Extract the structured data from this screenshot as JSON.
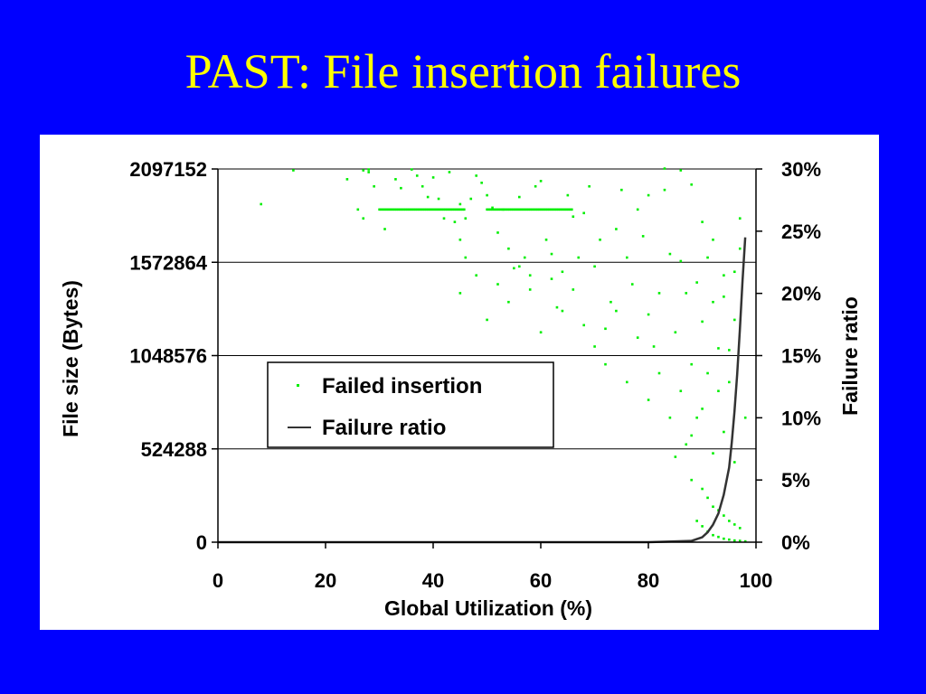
{
  "slide": {
    "title": "PAST: File insertion failures"
  },
  "colors": {
    "background": "#0000ff",
    "title": "#ffff00",
    "panel": "#ffffff",
    "failed_points": "#00ee00",
    "ratio_line": "#333333"
  },
  "chart_data": {
    "type": "scatter",
    "title": "",
    "xlabel": "Global Utilization (%)",
    "ylabel": "File size (Bytes)",
    "y2label": "Failure ratio",
    "xlim": [
      0,
      100
    ],
    "ylim": [
      0,
      2097152
    ],
    "y2lim": [
      0,
      30
    ],
    "x_ticks": [
      "0",
      "20",
      "40",
      "60",
      "80",
      "100"
    ],
    "y_ticks": [
      "0",
      "524288",
      "1048576",
      "1572864",
      "2097152"
    ],
    "y2_ticks": [
      "0%",
      "5%",
      "10%",
      "15%",
      "20%",
      "25%",
      "30%"
    ],
    "grid": true,
    "legend_position": "center-left",
    "legend": [
      "Failed insertion",
      "Failure ratio"
    ],
    "series": [
      {
        "name": "Failed insertion",
        "kind": "scatter",
        "axis": "left",
        "points": [
          [
            8,
            1900000
          ],
          [
            14,
            2090000
          ],
          [
            24,
            2040000
          ],
          [
            27,
            2090000
          ],
          [
            28,
            2080000
          ],
          [
            28,
            2095000
          ],
          [
            26,
            1870000
          ],
          [
            27,
            1820000
          ],
          [
            29,
            2000000
          ],
          [
            31,
            1760000
          ],
          [
            33,
            2040000
          ],
          [
            34,
            1990000
          ],
          [
            36,
            2095000
          ],
          [
            37,
            2060000
          ],
          [
            38,
            2000000
          ],
          [
            39,
            1940000
          ],
          [
            40,
            2050000
          ],
          [
            41,
            1930000
          ],
          [
            42,
            1820000
          ],
          [
            43,
            2080000
          ],
          [
            44,
            1800000
          ],
          [
            45,
            1900000
          ],
          [
            45,
            1700000
          ],
          [
            46,
            1820000
          ],
          [
            47,
            1930000
          ],
          [
            48,
            2060000
          ],
          [
            49,
            2020000
          ],
          [
            50,
            1950000
          ],
          [
            51,
            1880000
          ],
          [
            52,
            1740000
          ],
          [
            53,
            1870000
          ],
          [
            54,
            1650000
          ],
          [
            55,
            1540000
          ],
          [
            56,
            1940000
          ],
          [
            57,
            1600000
          ],
          [
            58,
            1500000
          ],
          [
            59,
            2000000
          ],
          [
            60,
            2030000
          ],
          [
            61,
            1700000
          ],
          [
            62,
            1620000
          ],
          [
            63,
            1320000
          ],
          [
            64,
            1520000
          ],
          [
            65,
            1950000
          ],
          [
            66,
            1830000
          ],
          [
            67,
            1600000
          ],
          [
            68,
            1850000
          ],
          [
            69,
            2000000
          ],
          [
            70,
            1550000
          ],
          [
            71,
            1700000
          ],
          [
            72,
            1200000
          ],
          [
            73,
            1350000
          ],
          [
            74,
            1760000
          ],
          [
            75,
            1980000
          ],
          [
            76,
            1600000
          ],
          [
            77,
            1450000
          ],
          [
            78,
            1870000
          ],
          [
            79,
            1720000
          ],
          [
            80,
            1280000
          ],
          [
            81,
            1100000
          ],
          [
            82,
            1400000
          ],
          [
            83,
            1980000
          ],
          [
            84,
            1620000
          ],
          [
            85,
            1180000
          ],
          [
            86,
            1580000
          ],
          [
            87,
            1400000
          ],
          [
            88,
            1000000
          ],
          [
            89,
            1460000
          ],
          [
            90,
            1240000
          ],
          [
            91,
            1600000
          ],
          [
            92,
            1350000
          ],
          [
            93,
            1090000
          ],
          [
            94,
            1380000
          ],
          [
            95,
            900000
          ],
          [
            96,
            1250000
          ],
          [
            97,
            1650000
          ],
          [
            98,
            700000
          ],
          [
            45,
            1400000
          ],
          [
            46,
            1600000
          ],
          [
            48,
            1500000
          ],
          [
            50,
            1250000
          ],
          [
            52,
            1450000
          ],
          [
            54,
            1350000
          ],
          [
            56,
            1550000
          ],
          [
            58,
            1420000
          ],
          [
            60,
            1180000
          ],
          [
            62,
            1480000
          ],
          [
            64,
            1300000
          ],
          [
            66,
            1420000
          ],
          [
            68,
            1220000
          ],
          [
            70,
            1100000
          ],
          [
            72,
            1000000
          ],
          [
            74,
            1300000
          ],
          [
            76,
            900000
          ],
          [
            78,
            1150000
          ],
          [
            80,
            800000
          ],
          [
            82,
            950000
          ],
          [
            84,
            700000
          ],
          [
            86,
            850000
          ],
          [
            88,
            600000
          ],
          [
            90,
            750000
          ],
          [
            92,
            500000
          ],
          [
            94,
            620000
          ],
          [
            96,
            450000
          ],
          [
            83,
            2100000
          ],
          [
            86,
            2090000
          ],
          [
            88,
            2010000
          ],
          [
            80,
            1950000
          ],
          [
            90,
            1800000
          ],
          [
            92,
            1700000
          ],
          [
            94,
            1500000
          ],
          [
            96,
            1520000
          ],
          [
            97,
            1820000
          ],
          [
            95,
            1080000
          ],
          [
            93,
            850000
          ],
          [
            91,
            950000
          ],
          [
            89,
            700000
          ],
          [
            87,
            550000
          ],
          [
            85,
            480000
          ],
          [
            88,
            350000
          ],
          [
            90,
            300000
          ],
          [
            91,
            250000
          ],
          [
            92,
            200000
          ],
          [
            93,
            180000
          ],
          [
            94,
            150000
          ],
          [
            95,
            120000
          ],
          [
            96,
            100000
          ],
          [
            97,
            80000
          ],
          [
            89,
            120000
          ],
          [
            90,
            90000
          ],
          [
            91,
            60000
          ],
          [
            92,
            40000
          ],
          [
            93,
            30000
          ],
          [
            94,
            20000
          ],
          [
            95,
            15000
          ],
          [
            96,
            10000
          ],
          [
            97,
            8000
          ],
          [
            98,
            5000
          ]
        ]
      },
      {
        "name": "Failure ratio",
        "kind": "line",
        "axis": "right",
        "points": [
          [
            0,
            0
          ],
          [
            20,
            0
          ],
          [
            40,
            0
          ],
          [
            60,
            0
          ],
          [
            80,
            0
          ],
          [
            88,
            0.1
          ],
          [
            90,
            0.4
          ],
          [
            91,
            0.8
          ],
          [
            92,
            1.4
          ],
          [
            93,
            2.3
          ],
          [
            94,
            3.8
          ],
          [
            95,
            6
          ],
          [
            95.5,
            8
          ],
          [
            96,
            10.5
          ],
          [
            96.5,
            13.5
          ],
          [
            97,
            17
          ],
          [
            97.5,
            21
          ],
          [
            98,
            24.5
          ]
        ]
      }
    ],
    "dense_bands": [
      {
        "y": 1870000,
        "x_from": 30,
        "x_to": 46
      },
      {
        "y": 1870000,
        "x_from": 50,
        "x_to": 66
      }
    ]
  }
}
